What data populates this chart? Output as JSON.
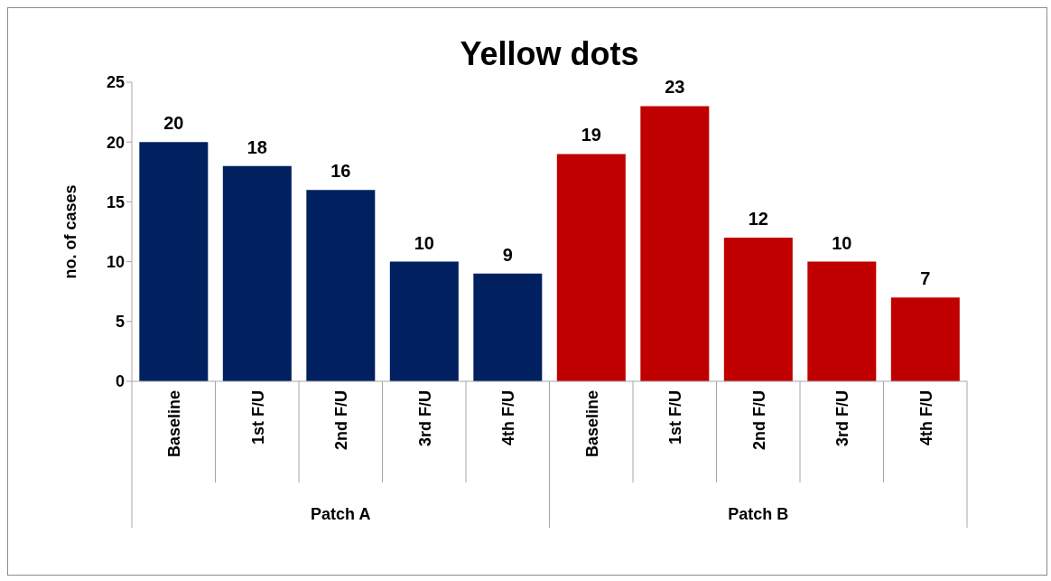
{
  "chart_data": {
    "type": "bar",
    "title": "Yellow dots",
    "ylabel": "no. of cases",
    "categories": [
      "Baseline",
      "1st F/U",
      "2nd F/U",
      "3rd F/U",
      "4th F/U",
      "Baseline",
      "1st F/U",
      "2nd F/U",
      "3rd F/U",
      "4th F/U"
    ],
    "values": [
      20,
      18,
      16,
      10,
      9,
      19,
      23,
      12,
      10,
      7
    ],
    "colors": [
      "#002060",
      "#002060",
      "#002060",
      "#002060",
      "#002060",
      "#c00000",
      "#c00000",
      "#c00000",
      "#c00000",
      "#c00000"
    ],
    "annotations": [
      "Patch A",
      "Patch B"
    ],
    "ylim": [
      0,
      25
    ],
    "yticks": [
      0,
      5,
      10,
      15,
      20,
      25
    ],
    "data_labels": true
  }
}
